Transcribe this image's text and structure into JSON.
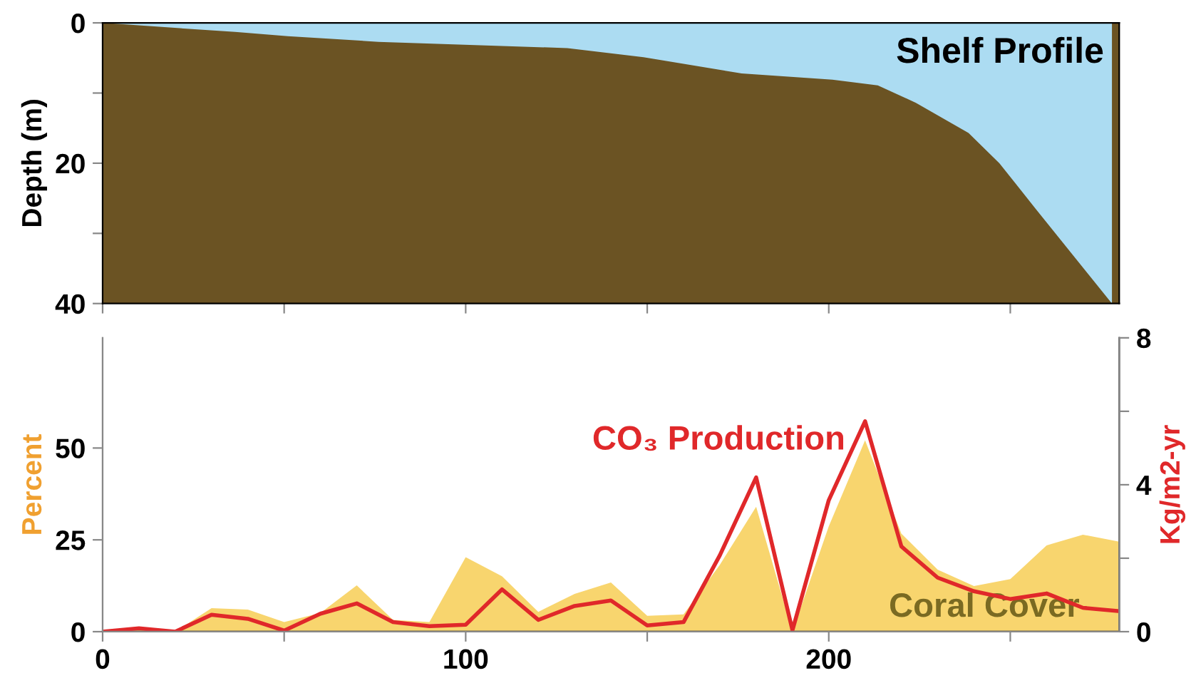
{
  "chart_data": [
    {
      "type": "area",
      "title": "Shelf Profile",
      "ylabel": "Depth (m)",
      "x": [
        0,
        36.5,
        51,
        76,
        128,
        149,
        176,
        201,
        213.5,
        224,
        238.5,
        247,
        257,
        278
      ],
      "series": [
        {
          "color": "#acdcf2",
          "values": [
            0,
            1.3,
            1.9,
            2.7,
            3.6,
            4.9,
            7.2,
            8.1,
            8.9,
            11.4,
            15.7,
            20,
            26.5,
            40
          ]
        }
      ],
      "bands": [
        {
          "axis": "y",
          "from": 0,
          "to": 40,
          "color": "#6b5323"
        }
      ],
      "xlim": [
        0,
        280
      ],
      "xticks": [
        {
          "value": 0,
          "label": null
        },
        {
          "value": 50,
          "label": null
        },
        {
          "value": 100,
          "label": null
        },
        {
          "value": 150,
          "label": null
        },
        {
          "value": 200,
          "label": null
        },
        {
          "value": 250,
          "label": null
        }
      ],
      "ylim": [
        40,
        0
      ],
      "yticks": [
        0,
        {
          "value": 10,
          "label": null
        },
        20,
        {
          "value": 30,
          "label": null
        },
        40
      ],
      "tick_labels": "y",
      "legend": false,
      "grid": false
    },
    {
      "type": "area",
      "ylabel": "Percent",
      "y2label": "Kg/m2-yr",
      "x": [
        0,
        10,
        20,
        30,
        40,
        50,
        60,
        70,
        80,
        90,
        100,
        110,
        120,
        130,
        140,
        150,
        160,
        170,
        180,
        190,
        200,
        210,
        220,
        230,
        240,
        250,
        260,
        270,
        280
      ],
      "series": [
        {
          "name": "Coral Cover",
          "type": "area",
          "color": "#f8d56e",
          "values": [
            0,
            0.5,
            0,
            6.4,
            6.0,
            2.6,
            5.1,
            12.6,
            3.2,
            2.6,
            20.3,
            15.1,
            5.4,
            10.3,
            13.4,
            4.3,
            4.7,
            18.2,
            34,
            0,
            28.7,
            52.1,
            26.7,
            16.9,
            12.4,
            14.3,
            23.5,
            26.4,
            24.5
          ]
        },
        {
          "name": "CO₃ Production",
          "type": "line",
          "axis": "y2",
          "color": "#e0282a",
          "values": [
            0,
            0.09,
            0,
            0.46,
            0.35,
            0.03,
            0.49,
            0.77,
            0.26,
            0.15,
            0.19,
            1.15,
            0.32,
            0.7,
            0.85,
            0.17,
            0.26,
            2.08,
            4.2,
            0.04,
            3.58,
            5.73,
            2.32,
            1.47,
            1.1,
            0.89,
            1.04,
            0.65,
            0.56
          ]
        }
      ],
      "xlim": [
        0,
        280
      ],
      "xticks": [
        0,
        {
          "value": 50,
          "label": null
        },
        100,
        {
          "value": 150,
          "label": null
        },
        200,
        {
          "value": 250,
          "label": null
        }
      ],
      "ylim": [
        0,
        80
      ],
      "yticks": [
        0,
        25,
        50
      ],
      "y2lim": [
        0,
        8
      ],
      "y2ticks": [
        0,
        {
          "value": 2,
          "label": null
        },
        4,
        {
          "value": 6,
          "label": null
        },
        8
      ],
      "legend": false,
      "grid": false,
      "marker": "none",
      "line_style": "solid"
    }
  ]
}
